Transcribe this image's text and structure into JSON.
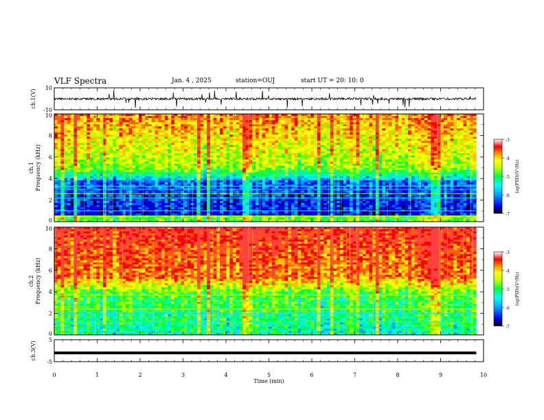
{
  "header": {
    "title": "VLF Spectra",
    "date": "Jan. 4 , 2025",
    "station": "station=OUJ",
    "start": "start UT =  20: 10: 0"
  },
  "colors": {
    "scale": [
      "#000000",
      "#0000ff",
      "#00a0ff",
      "#00ffff",
      "#00ff80",
      "#00ff00",
      "#c0ff00",
      "#ffff00",
      "#ff8000",
      "#ff0000",
      "#ffffff"
    ]
  },
  "chart_data": [
    {
      "type": "line",
      "name": "ch1-waveform",
      "ylabel": "ch.1(V)",
      "ylim": [
        -10,
        10
      ],
      "y_ticks": [
        "10",
        "-10"
      ],
      "baseline": 0,
      "xlim": [
        0,
        9.83
      ]
    },
    {
      "type": "heatmap",
      "name": "ch1-spectrogram",
      "ylabel_ch": "ch.1",
      "ylabel": "Frequency (kHz)",
      "ylim": [
        0,
        10
      ],
      "y_ticks": [
        "0",
        "2",
        "4",
        "6",
        "8",
        "10"
      ],
      "xlim": [
        0,
        9.83
      ],
      "colorbar": {
        "label": "log(PSD)(V²/Hz)",
        "range": [
          -7,
          -3
        ],
        "ticks": [
          "-3",
          "-4",
          "-5",
          "-6",
          "-7"
        ]
      }
    },
    {
      "type": "heatmap",
      "name": "ch2-spectrogram",
      "ylabel_ch": "ch.2",
      "ylabel": "Frequency (kHz)",
      "ylim": [
        0,
        10
      ],
      "y_ticks": [
        "0",
        "2",
        "4",
        "6",
        "8",
        "10"
      ],
      "xlim": [
        0,
        9.83
      ],
      "colorbar": {
        "label": "log(PSD)(V²/Hz)",
        "range": [
          -7,
          -3
        ],
        "ticks": [
          "-3",
          "-4",
          "-5",
          "-6",
          "-7"
        ]
      }
    },
    {
      "type": "line",
      "name": "ch3-waveform",
      "ylabel": "ch.3(V)",
      "ylim": [
        -5,
        5
      ],
      "y_ticks": [
        "5",
        "-5"
      ],
      "baseline": -1,
      "xlim": [
        0,
        9.83
      ]
    }
  ],
  "x_axis": {
    "label": "Time (min)",
    "range": [
      0,
      10
    ],
    "ticks": [
      "0",
      "1",
      "2",
      "3",
      "4",
      "5",
      "6",
      "7",
      "8",
      "9",
      "10"
    ]
  }
}
